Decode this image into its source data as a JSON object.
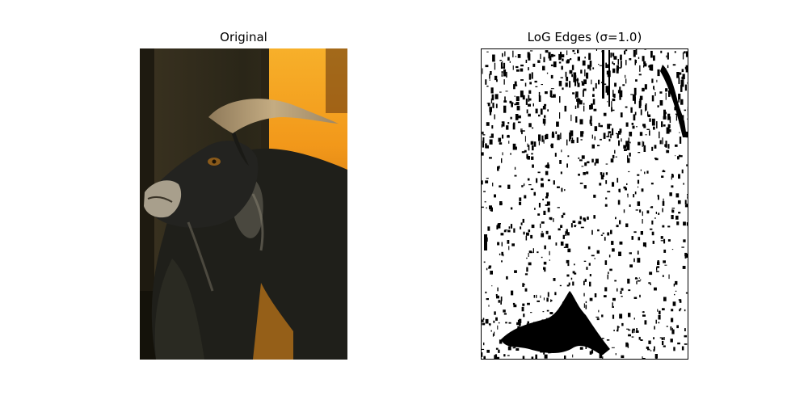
{
  "figure": {
    "panels": [
      {
        "title": "Original",
        "content": "goat-photo"
      },
      {
        "title": "LoG Edges (σ=1.0)",
        "content": "log-edge-map"
      }
    ]
  },
  "colors": {
    "background": "#ffffff",
    "photo_backdrop_dark": "#2e2a1c",
    "photo_fire": "#f2a21a",
    "goat_fur": "#1f1f1a",
    "goat_horn": "#b39a72",
    "edge_foreground": "#000000",
    "edge_background": "#ffffff"
  }
}
